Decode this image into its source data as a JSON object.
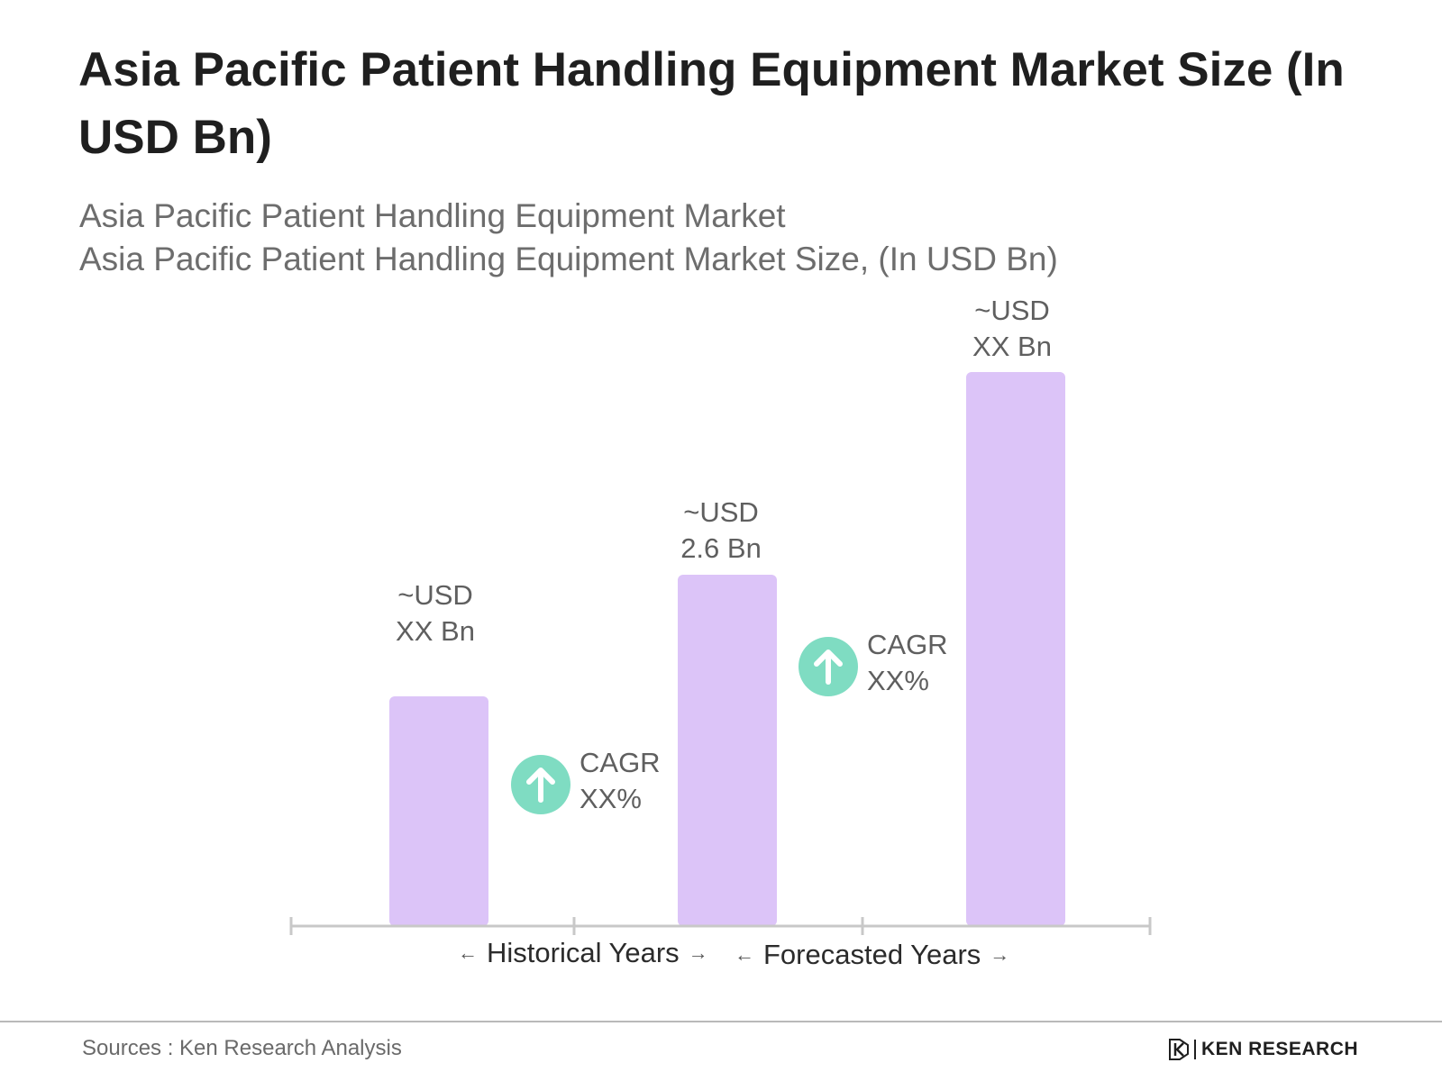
{
  "title": "Asia Pacific Patient Handling Equipment Market Size (In USD Bn)",
  "subtitle_line1": "Asia Pacific Patient Handling Equipment Market",
  "subtitle_line2": "Asia Pacific Patient Handling Equipment Market Size, (In USD Bn)",
  "chart_data": {
    "type": "bar",
    "title": "Asia Pacific Patient Handling Equipment Market Size (In USD Bn)",
    "categories": [
      "",
      "",
      ""
    ],
    "values": [
      1.7,
      2.6,
      4.1
    ],
    "value_labels": [
      [
        "~USD",
        "XX Bn"
      ],
      [
        "~USD",
        "2.6 Bn"
      ],
      [
        "~USD",
        "XX Bn"
      ]
    ],
    "ylim": [
      0,
      4.3
    ],
    "grid": false,
    "bar_color": "#dcc4f8",
    "annotations": [
      {
        "type": "cagr",
        "line1": "CAGR",
        "line2": "XX%",
        "between": [
          0,
          1
        ]
      },
      {
        "type": "cagr",
        "line1": "CAGR",
        "line2": "XX%",
        "between": [
          1,
          2
        ]
      }
    ],
    "periods": [
      "Historical Years",
      "Forecasted Years"
    ]
  },
  "colors": {
    "bar": "#dcc4f8",
    "cagr_icon": "#7fdcc2",
    "axis": "#c8c8c8"
  },
  "footer": {
    "source": "Sources : Ken Research Analysis",
    "logo_text": "KEN RESEARCH"
  }
}
